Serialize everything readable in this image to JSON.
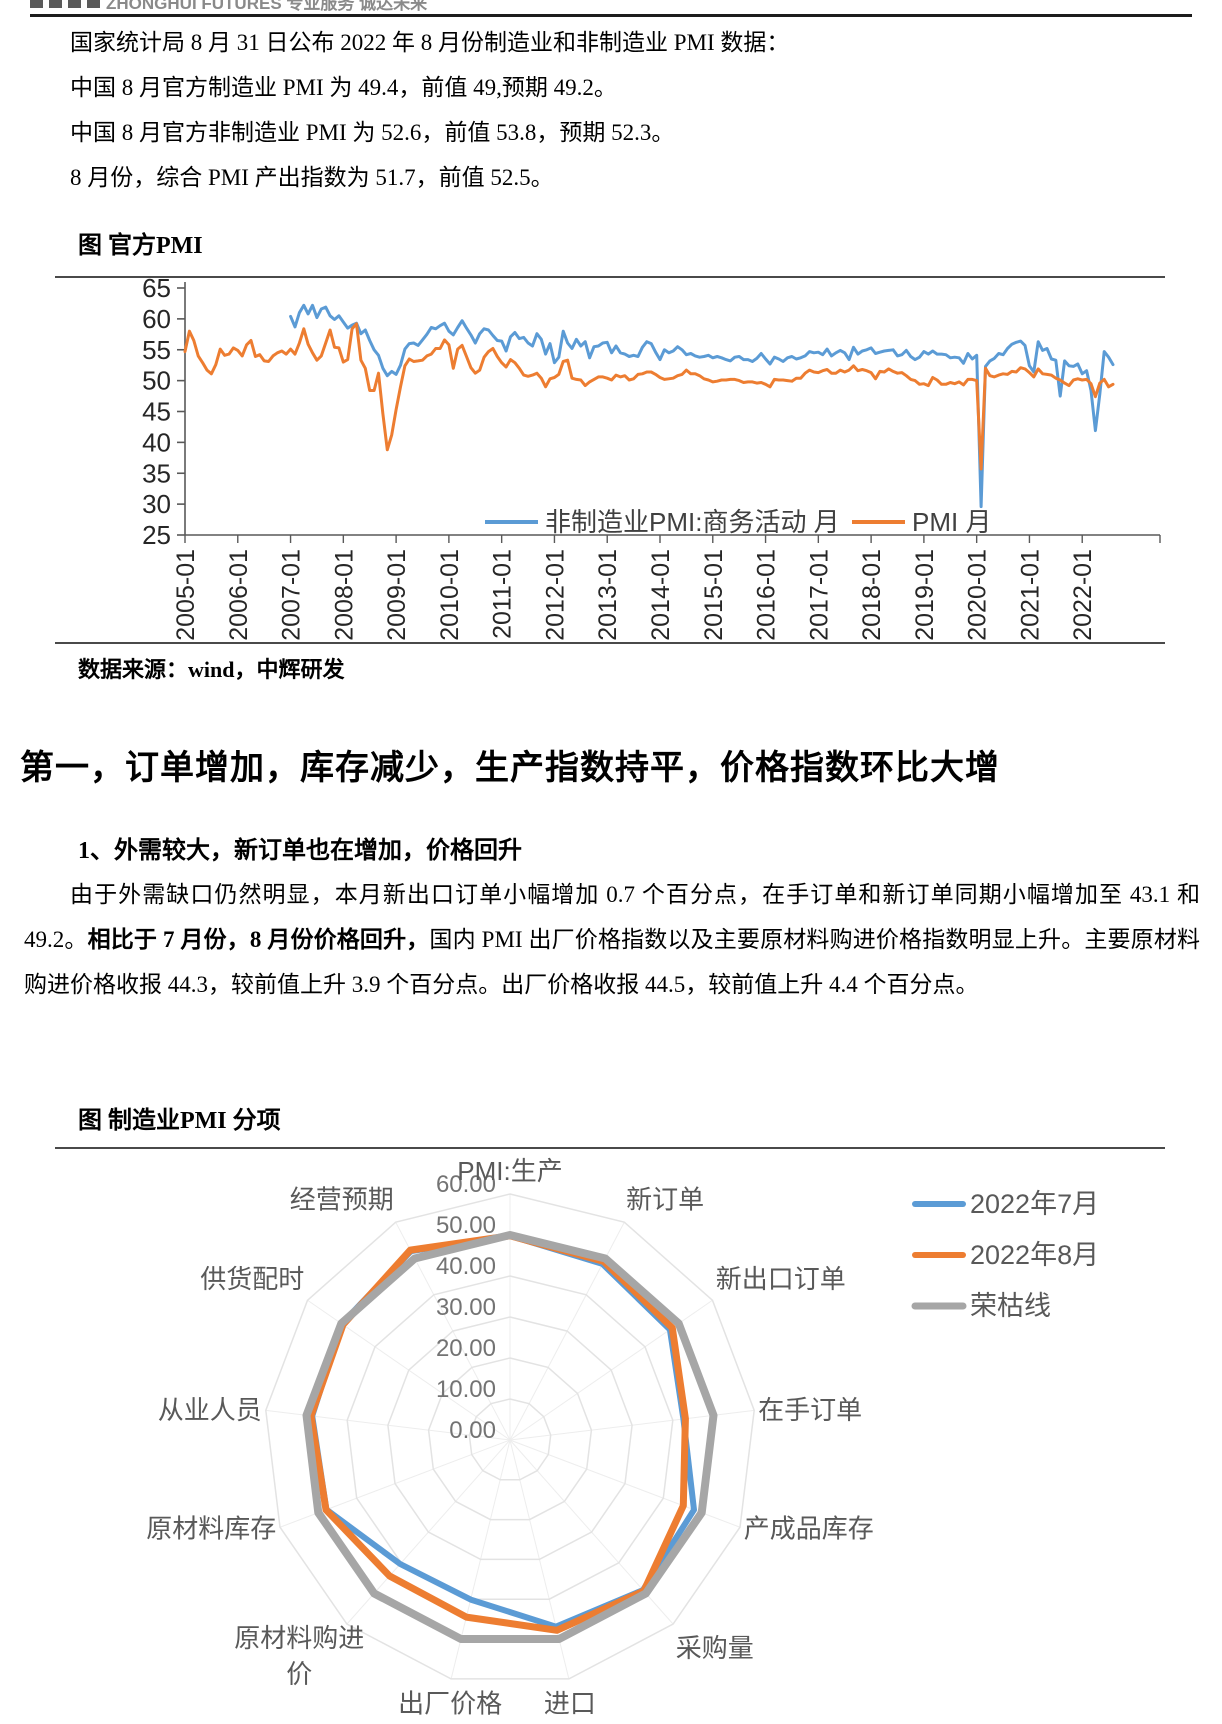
{
  "header": {
    "logo_text": "ZHONGHUI FUTURES 专业服务 诚达未来",
    "logo_square_count": 4
  },
  "intro": {
    "p1": "国家统计局 8 月 31 日公布 2022 年 8 月份制造业和非制造业 PMI 数据：",
    "p2": "中国 8 月官方制造业 PMI 为 49.4，前值 49,预期 49.2。",
    "p3": "中国 8 月官方非制造业 PMI 为 52.6，前值 53.8，预期 52.3。",
    "p4": "8 月份，综合 PMI 产出指数为 51.7，前值 52.5。"
  },
  "figure1": {
    "title": "图 官方PMI",
    "source": "数据来源：wind，中辉研发"
  },
  "section": {
    "heading": "第一，订单增加，库存减少，生产指数持平，价格指数环比大增",
    "subheading": "1、外需较大，新订单也在增加，价格回升",
    "para_part1": "由于外需缺口仍然明显，本月新出口订单小幅增加 0.7 个百分点，在手订单和新订单同期小幅增加至 43.1 和 49.2。",
    "para_bold": "相比于 7 月份，8 月份价格回升，",
    "para_part2": "国内 PMI 出厂价格指数以及主要原材料购进价格指数明显上升。主要原材料购进价格收报 44.3，较前值上升 3.9 个百分点。出厂价格收报 44.5，较前值上升 4.4 个百分点。"
  },
  "figure2": {
    "title": "图 制造业PMI 分项"
  },
  "colors": {
    "blue": "#5B9BD5",
    "orange": "#ED7D31",
    "gray": "#A6A6A6",
    "grid": "#E3E3E3",
    "spoke": "#EDEDED",
    "axis": "#595959",
    "chart_text": "#404040",
    "radar_text": "#595959"
  },
  "chart_data": [
    {
      "type": "line",
      "title": "图 官方PMI",
      "ylim": [
        25,
        65
      ],
      "y_ticks": [
        25,
        30,
        35,
        40,
        45,
        50,
        55,
        60,
        65
      ],
      "x_tick_labels": [
        "2005-01",
        "2006-01",
        "2007-01",
        "2008-01",
        "2009-01",
        "2010-01",
        "2011-01",
        "2012-01",
        "2013-01",
        "2014-01",
        "2015-01",
        "2016-01",
        "2017-01",
        "2018-01",
        "2019-01",
        "2020-01",
        "2021-01",
        "2022-01"
      ],
      "legend_position": "bottom-inside",
      "grid": false,
      "series": [
        {
          "name": "非制造业PMI:商务活动 月",
          "color": "#5B9BD5",
          "start": "2007-01",
          "values": [
            60.4,
            58.7,
            61.0,
            62.2,
            60.8,
            62.2,
            60.2,
            61.6,
            61.9,
            60.5,
            59.9,
            60.5,
            59.5,
            58.5,
            59.0,
            59.3,
            57.6,
            58.2,
            56.5,
            55.0,
            54.1,
            52.0,
            50.8,
            51.5,
            51.0,
            52.5,
            55.1,
            56.0,
            56.1,
            55.7,
            56.6,
            57.5,
            58.6,
            58.4,
            58.9,
            59.3,
            58.0,
            57.4,
            58.6,
            59.7,
            58.5,
            57.4,
            56.1,
            57.6,
            58.4,
            58.2,
            57.3,
            56.5,
            56.4,
            54.8,
            57.1,
            57.8,
            56.8,
            57.0,
            56.1,
            55.6,
            57.6,
            56.7,
            54.3,
            56.0,
            52.9,
            53.8,
            58.0,
            56.1,
            55.2,
            56.7,
            55.6,
            56.3,
            53.7,
            55.5,
            55.6,
            56.1,
            56.2,
            54.5,
            55.6,
            54.5,
            54.3,
            53.9,
            54.1,
            53.9,
            55.4,
            56.3,
            56.0,
            54.6,
            53.4,
            55.0,
            54.5,
            54.8,
            55.5,
            55.0,
            54.2,
            54.4,
            54.0,
            53.8,
            53.9,
            54.1,
            53.7,
            53.9,
            53.7,
            53.4,
            53.2,
            53.8,
            53.9,
            53.4,
            53.4,
            53.1,
            53.6,
            54.4,
            53.5,
            52.7,
            53.8,
            53.5,
            53.1,
            53.7,
            53.9,
            53.5,
            53.7,
            54.0,
            54.7,
            54.5,
            54.6,
            54.2,
            55.1,
            54.0,
            54.5,
            54.9,
            54.5,
            53.4,
            55.4,
            54.3,
            54.8,
            55.0,
            55.3,
            54.4,
            54.6,
            54.8,
            54.9,
            55.0,
            54.0,
            54.2,
            54.9,
            53.9,
            53.4,
            53.8,
            54.7,
            54.3,
            54.8,
            54.3,
            54.3,
            54.2,
            53.7,
            53.8,
            53.7,
            52.8,
            54.4,
            53.5,
            54.1,
            29.6,
            52.3,
            53.2,
            53.6,
            54.4,
            54.2,
            55.2,
            55.9,
            56.2,
            56.4,
            55.7,
            52.4,
            51.4,
            56.3,
            54.9,
            55.2,
            53.5,
            53.3,
            47.5,
            53.2,
            52.4,
            52.3,
            52.7,
            51.1,
            51.6,
            48.4,
            41.9,
            47.8,
            54.7,
            53.8,
            52.6
          ]
        },
        {
          "name": "PMI 月",
          "color": "#ED7D31",
          "start": "2005-01",
          "values": [
            54.7,
            58.0,
            56.5,
            54.0,
            52.9,
            51.7,
            51.1,
            52.6,
            55.1,
            54.1,
            54.3,
            55.3,
            54.9,
            54.0,
            55.8,
            56.5,
            53.9,
            54.2,
            53.2,
            53.1,
            54.0,
            54.5,
            54.8,
            54.3,
            55.1,
            54.3,
            56.1,
            58.4,
            55.9,
            54.5,
            53.3,
            54.0,
            56.1,
            58.2,
            55.4,
            55.3,
            53.0,
            53.4,
            58.4,
            59.2,
            53.3,
            52.0,
            48.4,
            48.4,
            51.2,
            44.6,
            38.8,
            41.2,
            45.3,
            49.0,
            52.4,
            53.5,
            53.1,
            53.2,
            53.3,
            54.0,
            54.3,
            55.2,
            55.2,
            56.6,
            55.8,
            52.0,
            55.1,
            55.7,
            53.9,
            52.1,
            51.2,
            51.7,
            53.8,
            54.7,
            55.2,
            53.9,
            52.9,
            52.2,
            53.4,
            52.9,
            52.0,
            50.9,
            50.7,
            50.9,
            51.2,
            50.4,
            49.0,
            50.3,
            50.5,
            51.0,
            53.1,
            53.3,
            50.4,
            50.2,
            50.1,
            49.2,
            49.8,
            50.2,
            50.6,
            50.6,
            50.4,
            50.1,
            50.9,
            50.6,
            50.8,
            50.1,
            50.3,
            51.0,
            51.1,
            51.4,
            51.4,
            51.0,
            50.5,
            50.2,
            50.3,
            50.4,
            50.8,
            51.0,
            51.7,
            51.1,
            51.1,
            50.8,
            50.3,
            50.1,
            49.8,
            49.9,
            50.1,
            50.1,
            50.2,
            50.2,
            50.0,
            49.7,
            49.8,
            49.8,
            49.6,
            49.7,
            49.4,
            49.0,
            50.2,
            50.1,
            50.1,
            50.0,
            49.9,
            50.4,
            50.4,
            51.2,
            51.7,
            51.4,
            51.3,
            51.6,
            51.8,
            51.2,
            51.2,
            51.7,
            51.4,
            51.7,
            52.4,
            51.6,
            51.8,
            51.6,
            51.3,
            50.3,
            51.5,
            51.4,
            51.9,
            51.5,
            51.2,
            51.3,
            50.8,
            50.2,
            50.0,
            49.4,
            49.5,
            49.2,
            50.5,
            50.1,
            49.4,
            49.4,
            49.7,
            49.5,
            49.8,
            49.3,
            50.2,
            50.2,
            50.0,
            35.7,
            52.0,
            50.8,
            50.6,
            50.9,
            51.1,
            51.0,
            51.5,
            51.4,
            52.1,
            51.9,
            51.3,
            50.6,
            51.9,
            51.1,
            51.0,
            50.9,
            50.4,
            50.1,
            49.6,
            49.2,
            50.1,
            50.3,
            50.1,
            50.2,
            49.5,
            47.4,
            49.6,
            50.2,
            49.0,
            49.4
          ]
        }
      ]
    },
    {
      "type": "radar",
      "title": "图 制造业PMI 分项",
      "categories": [
        "PMI:生产",
        "新订单",
        "新出口订单",
        "在手订单",
        "产成品库存",
        "采购量",
        "进口",
        "出厂价格",
        "原材料购进价",
        "原材料库存",
        "从业人员",
        "供货配时",
        "经营预期"
      ],
      "category_wrap": {
        "原材料购进价": [
          "原材料购进",
          "价"
        ]
      },
      "radial_ticks": [
        0,
        10,
        20,
        30,
        40,
        50,
        60
      ],
      "radial_tick_format": "0.00,10.00,20.00,30.00,40.00,50.00,60.00",
      "rlim": [
        0,
        60
      ],
      "legend_position": "right",
      "series": [
        {
          "name": "2022年7月",
          "color": "#5B9BD5",
          "values": [
            49.8,
            48.5,
            47.4,
            42.6,
            48.0,
            48.9,
            46.9,
            40.1,
            40.4,
            47.9,
            48.6,
            49.9,
            52.0
          ]
        },
        {
          "name": "2022年8月",
          "color": "#ED7D31",
          "values": [
            49.8,
            49.2,
            48.1,
            43.1,
            45.2,
            49.2,
            47.8,
            44.5,
            44.3,
            48.0,
            48.9,
            49.5,
            52.3
          ]
        },
        {
          "name": "荣枯线",
          "color": "#A6A6A6",
          "values": [
            50,
            50,
            50,
            50,
            50,
            50,
            50,
            50,
            50,
            50,
            50,
            50,
            50
          ]
        }
      ]
    }
  ]
}
